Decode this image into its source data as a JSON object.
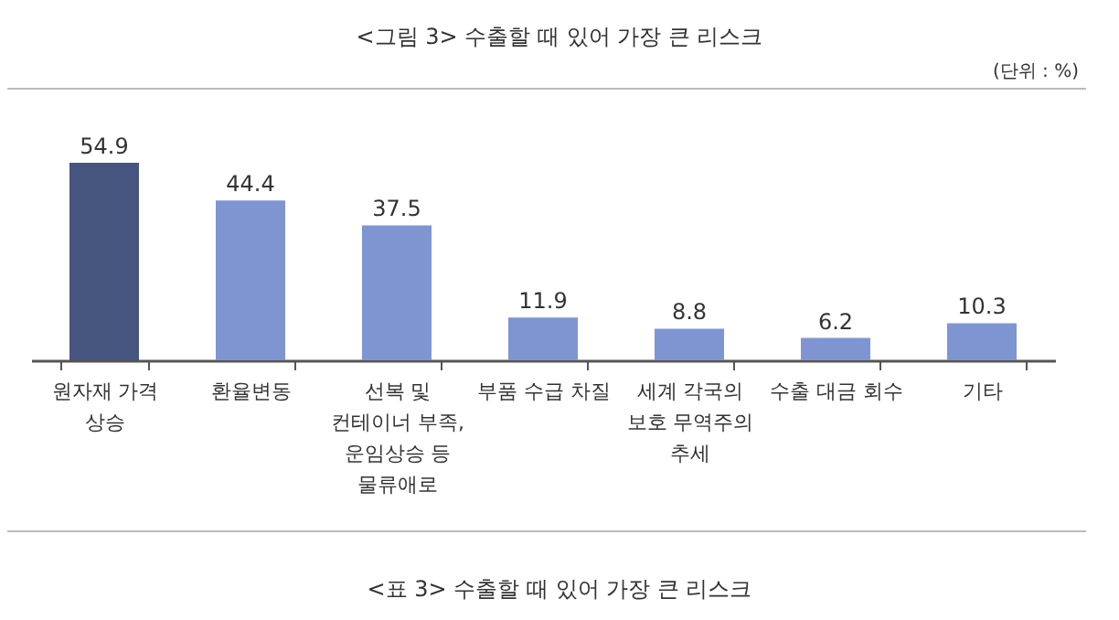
{
  "chart_data": {
    "type": "bar",
    "title": "<그림 3> 수출할 때 있어 가장 큰 리스크",
    "annotations": [
      "(단위 : %)",
      "<표 3> 수출할 때 있어 가장 큰 리스크"
    ],
    "categories": [
      "원자재 가격 상승",
      "환율변동",
      "선복 및 컨테이너 부족, 운임상승 등 물류애로",
      "부품 수급 차질",
      "세계 각국의 보호 무역주의 추세",
      "수출 대금 회수",
      "기타"
    ],
    "values": [
      54.9,
      44.4,
      37.5,
      11.9,
      8.8,
      6.2,
      10.3
    ],
    "colors": [
      "#46557e",
      "#7f95d1",
      "#7f95d1",
      "#7f95d1",
      "#7f95d1",
      "#7f95d1",
      "#7f95d1"
    ],
    "data_labels": true
  }
}
